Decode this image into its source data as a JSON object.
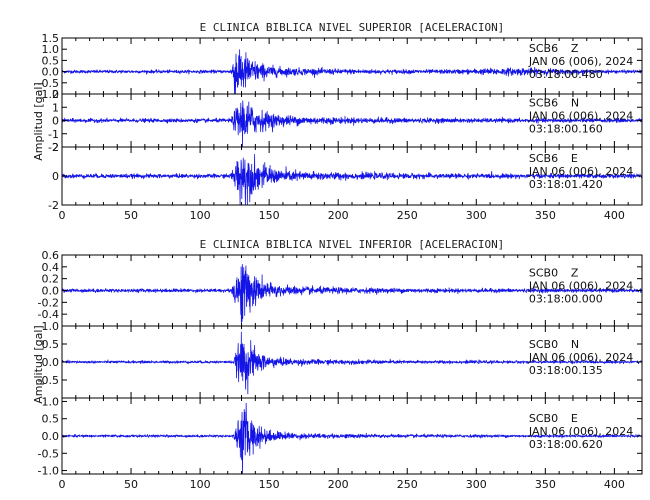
{
  "colors": {
    "trace": "#1414e6",
    "axes": "#000000",
    "background": "#ffffff"
  },
  "chart_data": [
    {
      "type": "line",
      "title": "E CLINICA BIBLICA NIVEL SUPERIOR [ACELERACION]",
      "ylabel": "Amplitud [gal]",
      "xlim": [
        0,
        420
      ],
      "x_ticks": [
        0,
        50,
        100,
        150,
        200,
        250,
        300,
        350,
        400
      ],
      "panels": [
        {
          "station": "SCB6",
          "component": "Z",
          "date": "JAN 06 (006), 2024",
          "time": "03:18:00.480",
          "ylim": [
            -1.0,
            1.5
          ],
          "y_ticks": [
            {
              "v": 1.5,
              "label": "1.5"
            },
            {
              "v": 1.0,
              "label": "1.0"
            },
            {
              "v": 0.5,
              "label": "0.5"
            },
            {
              "v": 0.0,
              "label": "0.0"
            },
            {
              "v": -0.5,
              "label": "-0.5"
            },
            {
              "v": -1.0,
              "label": "-1.0"
            }
          ],
          "envelope": {
            "noise": 0.06,
            "onset": 122,
            "peak_t": 126,
            "peak": 1.2,
            "decay": 9,
            "late_bump_t": 330,
            "late_bump": 0.08
          }
        },
        {
          "station": "SCB6",
          "component": "N",
          "date": "JAN 06 (006), 2024",
          "time": "03:18:00.160",
          "ylim": [
            -2,
            2
          ],
          "y_ticks": [
            {
              "v": 2,
              "label": "2"
            },
            {
              "v": 1,
              "label": "1"
            },
            {
              "v": 0,
              "label": "0"
            },
            {
              "v": -1,
              "label": "-1"
            },
            {
              "v": -2,
              "label": "-2"
            }
          ],
          "envelope": {
            "noise": 0.12,
            "onset": 122,
            "peak_t": 130,
            "peak": 1.4,
            "decay": 10
          }
        },
        {
          "station": "SCB6",
          "component": "E",
          "date": "JAN 06 (006), 2024",
          "time": "03:18:01.420",
          "ylim": [
            -2,
            2
          ],
          "y_ticks": [
            {
              "v": 2,
              "label": "2"
            },
            {
              "v": 0,
              "label": "0"
            },
            {
              "v": -2,
              "label": "-2"
            }
          ],
          "envelope": {
            "noise": 0.12,
            "onset": 122,
            "peak_t": 130,
            "peak": 1.6,
            "decay": 10
          }
        }
      ]
    },
    {
      "type": "line",
      "title": "E CLINICA BIBLICA NIVEL INFERIOR [ACELERACION]",
      "ylabel": "Amplitud [gal]",
      "xlim": [
        0,
        420
      ],
      "x_ticks": [
        0,
        50,
        100,
        150,
        200,
        250,
        300,
        350,
        400
      ],
      "panels": [
        {
          "station": "SCB0",
          "component": "Z",
          "date": "JAN 06 (006), 2024",
          "time": "03:18:00.000",
          "ylim": [
            -0.6,
            0.6
          ],
          "y_ticks": [
            {
              "v": 0.6,
              "label": "0.6"
            },
            {
              "v": 0.4,
              "label": "0.4"
            },
            {
              "v": 0.2,
              "label": "0.2"
            },
            {
              "v": 0.0,
              "label": "0.0"
            },
            {
              "v": -0.2,
              "label": "-0.2"
            },
            {
              "v": -0.4,
              "label": "-0.4"
            }
          ],
          "envelope": {
            "noise": 0.025,
            "onset": 122,
            "peak_t": 130,
            "peak": 0.45,
            "decay": 9
          }
        },
        {
          "station": "SCB0",
          "component": "N",
          "date": "JAN 06 (006), 2024",
          "time": "03:18:00.135",
          "ylim": [
            -1.0,
            1.0
          ],
          "y_ticks": [
            {
              "v": 1.0,
              "label": "1.0"
            },
            {
              "v": 0.5,
              "label": "0.5"
            },
            {
              "v": 0.0,
              "label": "0.0"
            },
            {
              "v": -0.5,
              "label": "-0.5"
            }
          ],
          "envelope": {
            "noise": 0.03,
            "onset": 124,
            "peak_t": 131,
            "peak": 0.7,
            "decay": 8
          }
        },
        {
          "station": "SCB0",
          "component": "E",
          "date": "JAN 06 (006), 2024",
          "time": "03:18:00.620",
          "ylim": [
            -1.1,
            1.1
          ],
          "y_ticks": [
            {
              "v": 1.0,
              "label": "1.0"
            },
            {
              "v": 0.5,
              "label": "0.5"
            },
            {
              "v": 0.0,
              "label": "0.0"
            },
            {
              "v": -0.5,
              "label": "-0.5"
            },
            {
              "v": -1.0,
              "label": "-1.0"
            }
          ],
          "envelope": {
            "noise": 0.03,
            "onset": 124,
            "peak_t": 131,
            "peak": 0.8,
            "decay": 8
          }
        }
      ]
    }
  ]
}
